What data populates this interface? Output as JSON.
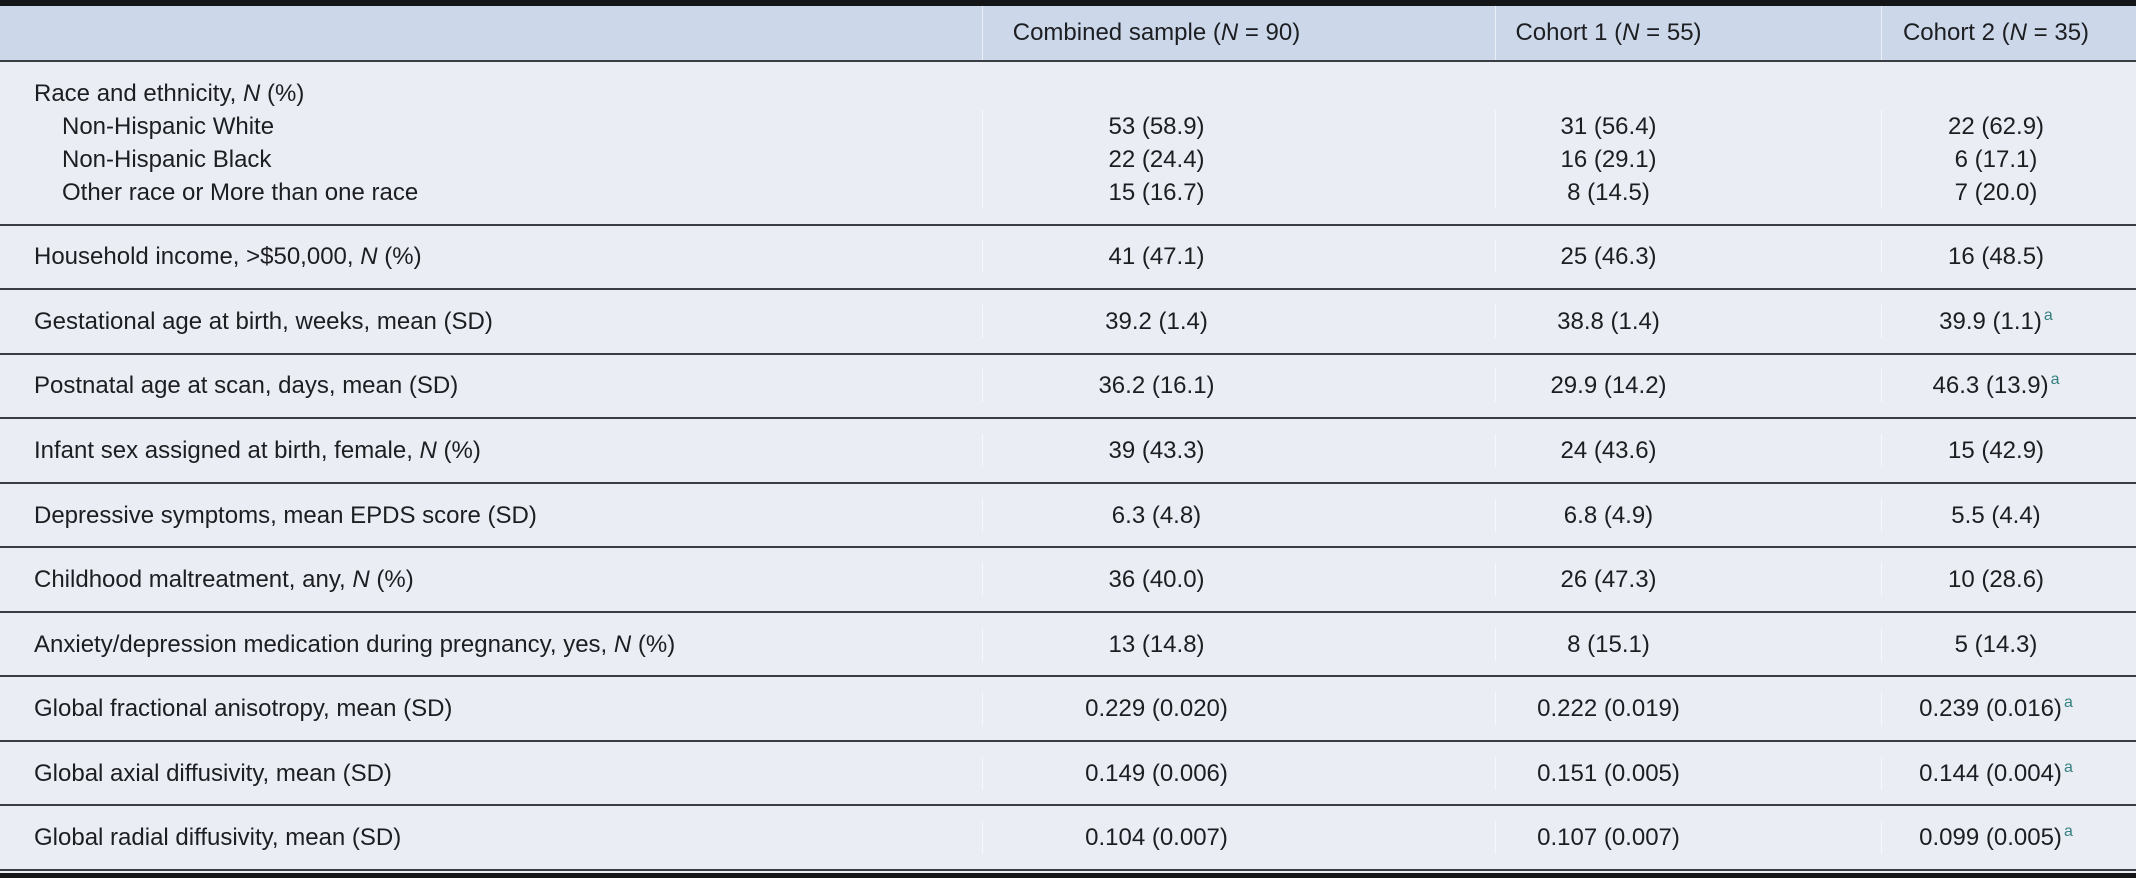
{
  "table": {
    "header": {
      "label_column": "",
      "columns": [
        "Combined sample (N = 90)",
        "Cohort 1 (N = 55)",
        "Cohort 2 (N = 35)"
      ]
    },
    "groups": [
      {
        "lines": [
          {
            "label": "Race and ethnicity, N (%)",
            "indent": false,
            "cells": [
              null,
              null,
              null
            ]
          },
          {
            "label": "Non-Hispanic White",
            "indent": true,
            "cells": [
              "53 (58.9)",
              "31 (56.4)",
              "22 (62.9)"
            ]
          },
          {
            "label": "Non-Hispanic Black",
            "indent": true,
            "cells": [
              "22 (24.4)",
              "16 (29.1)",
              "6 (17.1)"
            ]
          },
          {
            "label": "Other race or More than one race",
            "indent": true,
            "cells": [
              "15 (16.7)",
              "8 (14.5)",
              "7 (20.0)"
            ]
          }
        ]
      },
      {
        "lines": [
          {
            "label": "Household income, >$50,000, N (%)",
            "indent": false,
            "cells": [
              "41 (47.1)",
              "25 (46.3)",
              "16 (48.5)"
            ]
          }
        ]
      },
      {
        "lines": [
          {
            "label": "Gestational age at birth, weeks, mean (SD)",
            "indent": false,
            "cells": [
              "39.2 (1.4)",
              "38.8 (1.4)",
              {
                "v": "39.9 (1.1)",
                "sup": "a"
              }
            ]
          }
        ]
      },
      {
        "lines": [
          {
            "label": "Postnatal age at scan, days, mean (SD)",
            "indent": false,
            "cells": [
              "36.2 (16.1)",
              "29.9 (14.2)",
              {
                "v": "46.3 (13.9)",
                "sup": "a"
              }
            ]
          }
        ]
      },
      {
        "lines": [
          {
            "label": "Infant sex assigned at birth, female, N (%)",
            "indent": false,
            "cells": [
              "39 (43.3)",
              "24 (43.6)",
              "15 (42.9)"
            ]
          }
        ]
      },
      {
        "lines": [
          {
            "label": "Depressive symptoms, mean EPDS score (SD)",
            "indent": false,
            "cells": [
              "6.3 (4.8)",
              "6.8 (4.9)",
              "5.5 (4.4)"
            ]
          }
        ]
      },
      {
        "lines": [
          {
            "label": "Childhood maltreatment, any, N (%)",
            "indent": false,
            "cells": [
              "36 (40.0)",
              "26 (47.3)",
              "10 (28.6)"
            ]
          }
        ]
      },
      {
        "lines": [
          {
            "label": "Anxiety/depression medication during pregnancy, yes, N (%)",
            "indent": false,
            "cells": [
              "13 (14.8)",
              "8 (15.1)",
              "5 (14.3)"
            ]
          }
        ]
      },
      {
        "lines": [
          {
            "label": "Global fractional anisotropy, mean (SD)",
            "indent": false,
            "cells": [
              "0.229 (0.020)",
              "0.222 (0.019)",
              {
                "v": "0.239 (0.016)",
                "sup": "a"
              }
            ]
          }
        ]
      },
      {
        "lines": [
          {
            "label": "Global axial diffusivity, mean (SD)",
            "indent": false,
            "cells": [
              "0.149 (0.006)",
              "0.151 (0.005)",
              {
                "v": "0.144 (0.004)",
                "sup": "a"
              }
            ]
          }
        ]
      },
      {
        "lines": [
          {
            "label": "Global radial diffusivity, mean (SD)",
            "indent": false,
            "cells": [
              "0.104 (0.007)",
              "0.107 (0.007)",
              {
                "v": "0.099 (0.005)",
                "sup": "a"
              }
            ]
          }
        ]
      }
    ],
    "colors": {
      "header_background": "#ccd8e9",
      "body_background": "#eaedf4",
      "rule_dark": "#3a3e43",
      "rule_thick": "#131517",
      "text": "#1c1e21",
      "significance_marker": "#35807f"
    }
  }
}
